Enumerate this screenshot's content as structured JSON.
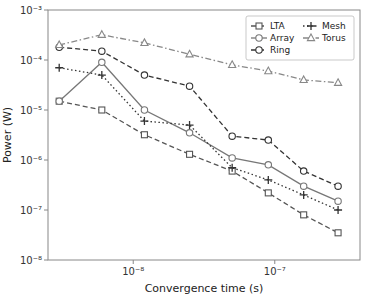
{
  "chart_data": {
    "type": "line",
    "xlabel": "Convergence time (s)",
    "ylabel": "Power (W)",
    "log": true,
    "grid": false,
    "legend": "upper right",
    "x": [
      3e-09,
      6e-09,
      1.2e-08,
      2.5e-08,
      5e-08,
      9e-08,
      1.6e-07,
      2.8e-07
    ],
    "xlim": [
      2.5e-09,
      4e-07
    ],
    "ylim": [
      1e-08,
      0.001
    ],
    "xticks": [
      {
        "value": 1e-08,
        "label": "10⁻⁸"
      },
      {
        "value": 1e-07,
        "label": "10⁻⁷"
      }
    ],
    "yticks": [
      {
        "value": 1e-08,
        "label": "10⁻⁸"
      },
      {
        "value": 1e-07,
        "label": "10⁻⁷"
      },
      {
        "value": 1e-06,
        "label": "10⁻⁶"
      },
      {
        "value": 1e-05,
        "label": "10⁻⁵"
      },
      {
        "value": 0.0001,
        "label": "10⁻⁴"
      },
      {
        "value": 0.001,
        "label": "10⁻³"
      }
    ],
    "series": [
      {
        "name": "LTA",
        "color": "#555555",
        "line_style": "dashed",
        "marker": "square",
        "values": [
          1.5e-05,
          1e-05,
          3.2e-06,
          1.3e-06,
          6e-07,
          2.2e-07,
          8e-08,
          3.5e-08
        ]
      },
      {
        "name": "Array",
        "color": "#777777",
        "line_style": "solid",
        "marker": "circle",
        "values": [
          1.5e-05,
          9e-05,
          1e-05,
          3.5e-06,
          1.1e-06,
          8e-07,
          3e-07,
          1.5e-07
        ]
      },
      {
        "name": "Ring",
        "color": "#333333",
        "line_style": "dashed",
        "marker": "circle",
        "values": [
          0.00018,
          0.00015,
          5e-05,
          3e-05,
          3e-06,
          2.5e-06,
          6e-07,
          3e-07
        ]
      },
      {
        "name": "Mesh",
        "color": "#333333",
        "line_style": "dotted",
        "marker": "plus",
        "values": [
          7e-05,
          5e-05,
          6e-06,
          5e-06,
          7e-07,
          4e-07,
          2e-07,
          1e-07
        ]
      },
      {
        "name": "Torus",
        "color": "#888888",
        "line_style": "dashdot",
        "marker": "triangle",
        "values": [
          0.0002,
          0.00032,
          0.00022,
          0.00013,
          8e-05,
          6e-05,
          4e-05,
          3.5e-05
        ]
      }
    ]
  }
}
